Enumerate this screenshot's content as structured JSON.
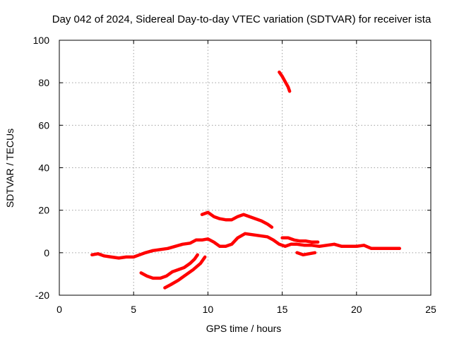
{
  "chart_data": {
    "type": "line",
    "title": "Day 042 of 2024, Sidereal Day-to-day VTEC variation (SDTVAR) for receiver ista",
    "xlabel": "GPS time / hours",
    "ylabel": "SDTVAR / TECUs",
    "xlim": [
      0,
      25
    ],
    "ylim": [
      -20,
      100
    ],
    "xticks": [
      0,
      5,
      10,
      15,
      20,
      25
    ],
    "yticks": [
      -20,
      0,
      20,
      40,
      60,
      80,
      100
    ],
    "grid": true,
    "color": "#ff0000",
    "series": [
      {
        "name": "main",
        "points": [
          [
            2.2,
            -1
          ],
          [
            2.6,
            -0.5
          ],
          [
            3.0,
            -1.5
          ],
          [
            3.5,
            -2
          ],
          [
            4.0,
            -2.5
          ],
          [
            4.5,
            -2
          ],
          [
            5.0,
            -2
          ],
          [
            5.4,
            -1
          ],
          [
            5.8,
            0
          ],
          [
            6.3,
            1
          ],
          [
            6.8,
            1.5
          ],
          [
            7.3,
            2
          ],
          [
            7.8,
            3
          ],
          [
            8.3,
            4
          ],
          [
            8.8,
            4.5
          ],
          [
            9.2,
            6
          ],
          [
            9.6,
            6
          ],
          [
            10.0,
            6.5
          ],
          [
            10.4,
            5
          ],
          [
            10.8,
            3
          ],
          [
            11.2,
            3
          ],
          [
            11.6,
            4
          ],
          [
            12.0,
            7
          ],
          [
            12.5,
            9
          ],
          [
            13.0,
            8.5
          ],
          [
            13.5,
            8
          ],
          [
            14.0,
            7.5
          ],
          [
            14.4,
            6
          ],
          [
            14.8,
            4
          ],
          [
            15.2,
            3
          ],
          [
            15.6,
            4
          ],
          [
            16.0,
            4
          ],
          [
            16.5,
            3.5
          ],
          [
            17.0,
            3.5
          ],
          [
            17.5,
            3
          ],
          [
            18.0,
            3.5
          ],
          [
            18.5,
            4
          ],
          [
            19.0,
            3
          ],
          [
            19.5,
            3
          ],
          [
            20.0,
            3
          ],
          [
            20.5,
            3.5
          ],
          [
            21.0,
            2
          ],
          [
            21.5,
            2
          ],
          [
            22.0,
            2
          ],
          [
            22.5,
            2
          ],
          [
            22.9,
            2
          ]
        ]
      },
      {
        "name": "upper-arc",
        "points": [
          [
            9.6,
            18
          ],
          [
            10.0,
            19
          ],
          [
            10.4,
            17
          ],
          [
            10.8,
            16
          ],
          [
            11.2,
            15.5
          ],
          [
            11.6,
            15.5
          ],
          [
            12.0,
            17
          ],
          [
            12.4,
            18
          ],
          [
            12.8,
            17
          ],
          [
            13.2,
            16
          ],
          [
            13.6,
            15
          ],
          [
            14.0,
            13.5
          ],
          [
            14.3,
            12
          ]
        ]
      },
      {
        "name": "outlier",
        "points": [
          [
            14.8,
            85
          ],
          [
            15.0,
            83
          ],
          [
            15.2,
            80.5
          ],
          [
            15.4,
            78
          ],
          [
            15.5,
            76
          ]
        ]
      },
      {
        "name": "neg-bump",
        "points": [
          [
            5.5,
            -9.5
          ],
          [
            5.9,
            -11
          ],
          [
            6.3,
            -12
          ],
          [
            6.8,
            -12
          ],
          [
            7.2,
            -11
          ],
          [
            7.6,
            -9
          ],
          [
            8.0,
            -8
          ],
          [
            8.4,
            -7
          ],
          [
            8.8,
            -5
          ],
          [
            9.1,
            -3
          ],
          [
            9.3,
            -1
          ]
        ]
      },
      {
        "name": "neg-ramp",
        "points": [
          [
            7.1,
            -16.5
          ],
          [
            7.5,
            -15
          ],
          [
            8.0,
            -13
          ],
          [
            8.5,
            -10.5
          ],
          [
            9.0,
            -8
          ],
          [
            9.5,
            -5
          ],
          [
            9.8,
            -2
          ]
        ]
      },
      {
        "name": "segment-a",
        "points": [
          [
            15.0,
            7
          ],
          [
            15.4,
            7
          ],
          [
            15.8,
            6
          ],
          [
            16.2,
            5.5
          ],
          [
            16.6,
            5.5
          ],
          [
            17.0,
            5
          ],
          [
            17.4,
            5
          ]
        ]
      },
      {
        "name": "segment-b",
        "points": [
          [
            16.0,
            0
          ],
          [
            16.4,
            -1
          ],
          [
            16.8,
            -0.5
          ],
          [
            17.2,
            0
          ]
        ]
      }
    ]
  }
}
